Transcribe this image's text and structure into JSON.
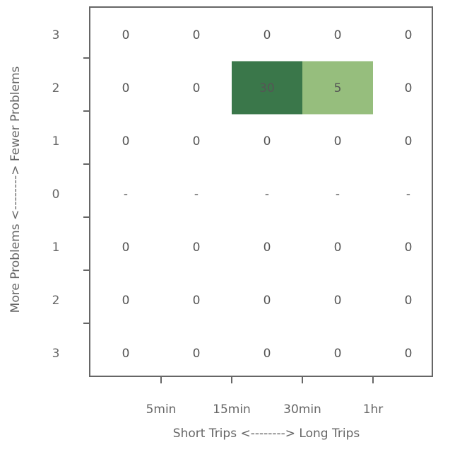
{
  "chart_data": {
    "type": "heatmap",
    "xlabel": "Short Trips <--------> Long Trips",
    "ylabel": "More Problems <--------> Fewer Problems",
    "x_tick_labels": [
      "5min",
      "15min",
      "30min",
      "1hr"
    ],
    "y_labels": [
      "3",
      "2",
      "1",
      "0",
      "1",
      "2",
      "3"
    ],
    "grid": false,
    "values": [
      [
        "0",
        "0",
        "0",
        "0",
        "0"
      ],
      [
        "0",
        "0",
        "30",
        "5",
        "0"
      ],
      [
        "0",
        "0",
        "0",
        "0",
        "0"
      ],
      [
        "-",
        "-",
        "-",
        "-",
        "-"
      ],
      [
        "0",
        "0",
        "0",
        "0",
        "0"
      ],
      [
        "0",
        "0",
        "0",
        "0",
        "0"
      ],
      [
        "0",
        "0",
        "0",
        "0",
        "0"
      ]
    ],
    "colors": {
      "high": "#3a774a",
      "low": "#a8cc87",
      "axis": "#666666",
      "text_default": "#555555",
      "text_on_fill": "#ffffff"
    }
  }
}
